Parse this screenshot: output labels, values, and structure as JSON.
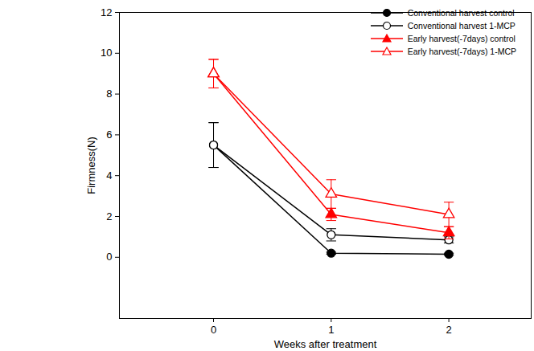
{
  "chart_data": {
    "type": "line",
    "x_label": "Weeks after treatment",
    "y_label": "Firmness(N)",
    "x": [
      0,
      1,
      2
    ],
    "xlim": [
      -0.8,
      2.7
    ],
    "xticks": [
      0,
      1,
      2
    ],
    "ylim": [
      -3,
      12
    ],
    "yticks": [
      0,
      2,
      4,
      6,
      8,
      10,
      12
    ],
    "legend": "upper right",
    "series": [
      {
        "name": "Conventional harvest control",
        "color": "#000000",
        "marker": "circle",
        "values": [
          5.5,
          0.2,
          0.15
        ],
        "errors": [
          1.1,
          0.05,
          0.05
        ]
      },
      {
        "name": "Conventional harvest 1-MCP",
        "color": "#000000",
        "marker": "circle-open",
        "values": [
          5.5,
          1.1,
          0.85
        ],
        "errors": [
          1.1,
          0.3,
          0.15
        ]
      },
      {
        "name": "Early harvest(-7days) control",
        "color": "#ff0000",
        "marker": "triangle",
        "values": [
          9.0,
          2.1,
          1.2
        ],
        "errors": [
          0.7,
          0.3,
          0.3
        ]
      },
      {
        "name": "Early harvest(-7days) 1-MCP",
        "color": "#ff0000",
        "marker": "triangle-open",
        "values": [
          9.0,
          3.1,
          2.1
        ],
        "errors": [
          0.7,
          0.7,
          0.6
        ]
      }
    ]
  }
}
